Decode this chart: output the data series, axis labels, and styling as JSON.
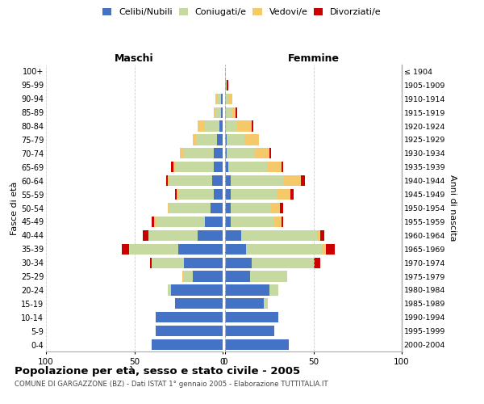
{
  "age_groups": [
    "0-4",
    "5-9",
    "10-14",
    "15-19",
    "20-24",
    "25-29",
    "30-34",
    "35-39",
    "40-44",
    "45-49",
    "50-54",
    "55-59",
    "60-64",
    "65-69",
    "70-74",
    "75-79",
    "80-84",
    "85-89",
    "90-94",
    "95-99",
    "100+"
  ],
  "birth_years": [
    "2000-2004",
    "1995-1999",
    "1990-1994",
    "1985-1989",
    "1980-1984",
    "1975-1979",
    "1970-1974",
    "1965-1969",
    "1960-1964",
    "1955-1959",
    "1950-1954",
    "1945-1949",
    "1940-1944",
    "1935-1939",
    "1930-1934",
    "1925-1929",
    "1920-1924",
    "1915-1919",
    "1910-1914",
    "1905-1909",
    "≤ 1904"
  ],
  "colors": {
    "celibe": "#4472C4",
    "coniugato": "#C5D9A0",
    "vedovo": "#F5C96A",
    "divorziato": "#CC0000"
  },
  "maschi": {
    "celibe": [
      40,
      38,
      38,
      27,
      29,
      17,
      22,
      25,
      14,
      10,
      7,
      5,
      6,
      5,
      5,
      3,
      2,
      1,
      1,
      0,
      0
    ],
    "coniugato": [
      0,
      0,
      0,
      0,
      2,
      5,
      18,
      28,
      28,
      28,
      23,
      20,
      24,
      22,
      17,
      12,
      8,
      3,
      2,
      0,
      0
    ],
    "vedovo": [
      0,
      0,
      0,
      0,
      0,
      1,
      0,
      0,
      0,
      1,
      1,
      1,
      1,
      1,
      2,
      2,
      4,
      1,
      1,
      0,
      0
    ],
    "divorziato": [
      0,
      0,
      0,
      0,
      0,
      0,
      1,
      4,
      3,
      1,
      0,
      1,
      1,
      1,
      0,
      0,
      0,
      0,
      0,
      0,
      0
    ]
  },
  "femmine": {
    "celibe": [
      36,
      28,
      30,
      22,
      25,
      14,
      15,
      12,
      9,
      3,
      3,
      3,
      3,
      2,
      1,
      1,
      0,
      0,
      0,
      0,
      0
    ],
    "coniugato": [
      0,
      0,
      0,
      2,
      5,
      21,
      35,
      43,
      43,
      25,
      23,
      26,
      30,
      22,
      16,
      10,
      7,
      4,
      2,
      1,
      0
    ],
    "vedovo": [
      0,
      0,
      0,
      0,
      0,
      0,
      0,
      2,
      2,
      4,
      5,
      8,
      10,
      8,
      8,
      8,
      8,
      2,
      2,
      0,
      0
    ],
    "divorziato": [
      0,
      0,
      0,
      0,
      0,
      0,
      4,
      5,
      2,
      1,
      2,
      2,
      2,
      1,
      1,
      0,
      1,
      1,
      0,
      1,
      0
    ]
  },
  "xlim": 100,
  "title": "Popolazione per età, sesso e stato civile - 2005",
  "subtitle": "COMUNE DI GARGAZZONE (BZ) - Dati ISTAT 1° gennaio 2005 - Elaborazione TUTTITALIA.IT",
  "ylabel_left": "Fasce di età",
  "ylabel_right": "Anni di nascita",
  "xlabel_left": "Maschi",
  "xlabel_right": "Femmine",
  "legend_labels": [
    "Celibi/Nubili",
    "Coniugati/e",
    "Vedovi/e",
    "Divorziati/e"
  ],
  "background_color": "#ffffff",
  "grid_color": "#cccccc"
}
